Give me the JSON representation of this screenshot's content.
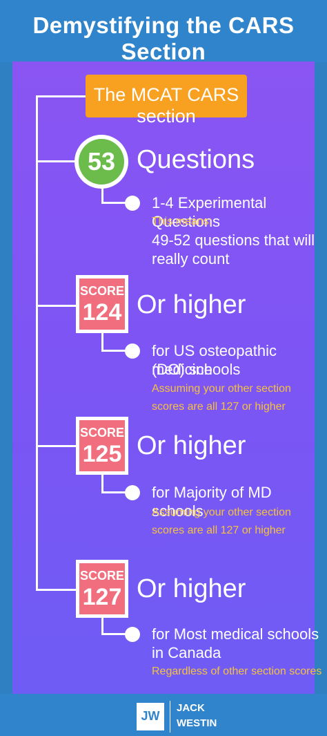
{
  "header": {
    "title": "Demystifying the CARS Section"
  },
  "intro": {
    "label": "The MCAT CARS section"
  },
  "questions": {
    "number": "53",
    "title": "Questions",
    "detail": "1-4 Experimental Questions",
    "note": "This means:",
    "detail2_line1": "49-52 questions that will",
    "detail2_line2": "really count"
  },
  "scores": [
    {
      "label": "SCORE",
      "value": "124",
      "heading": "Or higher",
      "detail_line1": "for US osteopathic medicine",
      "detail_line2": "(DO) schools",
      "note_line1": "Assuming your other section",
      "note_line2": "scores are all 127 or higher"
    },
    {
      "label": "SCORE",
      "value": "125",
      "heading": "Or higher",
      "detail_line1": "for Majority of MD schools",
      "note_line1": "Assuming your other section",
      "note_line2": "scores are all 127 or higher"
    },
    {
      "label": "SCORE",
      "value": "127",
      "heading": "Or higher",
      "detail_line1": "for Most medical schools",
      "detail_line2": "in Canada",
      "note_line1": "Regardless of other section scores"
    }
  ],
  "footer": {
    "logo": "JW",
    "brand_line1": "JACK",
    "brand_line2": "WESTIN"
  },
  "colors": {
    "header_bg": "#2f84cb",
    "panel_gradient_top": "#8a55f3",
    "panel_gradient_bottom": "#6f5cf5",
    "orange": "#f8a01f",
    "green": "#6bbc4a",
    "score_pink": "#f06e7d",
    "note_yellow": "#f6c23e"
  }
}
